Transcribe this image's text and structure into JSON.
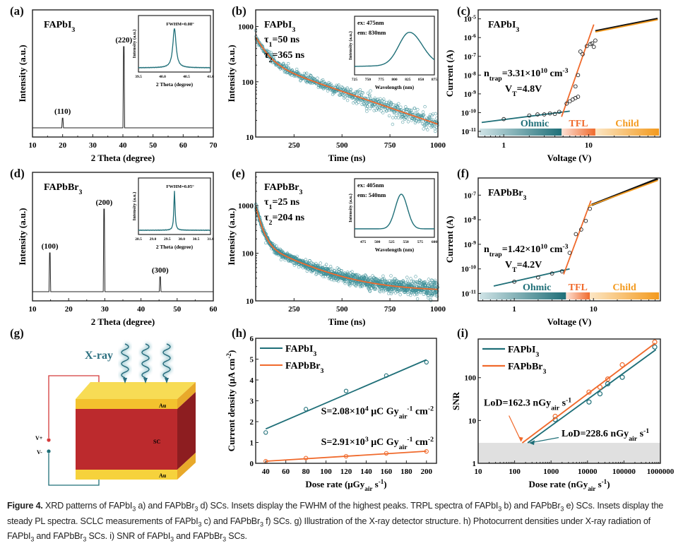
{
  "figure": {
    "number_label": "Figure 4.",
    "caption_segments": [
      {
        "t": "XRD patterns of FAPbI"
      },
      {
        "s": "3"
      },
      {
        "t": " a) and FAPbBr"
      },
      {
        "s": "3"
      },
      {
        "t": " d) SCs. Insets display the FWHM of the highest peaks. TRPL spectra of FAPbI"
      },
      {
        "s": "3"
      },
      {
        "t": " b) and FAPbBr"
      },
      {
        "s": "3"
      },
      {
        "t": " e) SCs. Insets display the steady PL spectra. SCLC measurements of FAPbI"
      },
      {
        "s": "3"
      },
      {
        "t": " c) and FAPbBr"
      },
      {
        "s": "3"
      },
      {
        "t": " f) SCs. g) Illustration of the X-ray detector structure. h) Photocurrent densities under X-ray radiation of FAPbI"
      },
      {
        "s": "3"
      },
      {
        "t": " and FAPbBr"
      },
      {
        "s": "3"
      },
      {
        "t": " SCs. i) SNR of FAPbI"
      },
      {
        "s": "3"
      },
      {
        "t": " and FAPbBr"
      },
      {
        "s": "3"
      },
      {
        "t": " SCs."
      }
    ]
  },
  "colors": {
    "teal": "#1f6f78",
    "orange": "#f06a2c",
    "amber": "#f39a1e",
    "black": "#1a1a1a",
    "au_gold": "#f5c93a",
    "sc_red": "#bf2a2e",
    "lod_gray": "#e0e0e0",
    "wire_red": "#d43a3a"
  },
  "panels": {
    "a": {
      "label": "(a)",
      "material": "FAPbI",
      "material_sub": "3"
    },
    "b": {
      "label": "(b)",
      "material": "FAPbI",
      "material_sub": "3",
      "tau1": "=50 ns",
      "tau2": "=365 ns"
    },
    "c": {
      "label": "(c)",
      "material": "FAPbI",
      "material_sub": "3",
      "ntrap": "=3.31×10",
      "ntrap_exp": "10",
      "ntrap_unit": " cm",
      "ntrap_unit_exp": "-3",
      "vt": "=4.8V",
      "regions": [
        "Ohmic",
        "TFL",
        "Child"
      ]
    },
    "d": {
      "label": "(d)",
      "material": "FAPbBr",
      "material_sub": "3"
    },
    "e": {
      "label": "(e)",
      "material": "FAPbBr",
      "material_sub": "3",
      "tau1": "=25 ns",
      "tau2": "=204 ns"
    },
    "f": {
      "label": "(f)",
      "material": "FAPbBr",
      "material_sub": "3",
      "ntrap": "=1.42×10",
      "ntrap_exp": "10",
      "ntrap_unit": " cm",
      "ntrap_unit_exp": "-3",
      "vt": "=4.2V",
      "regions": [
        "Ohmic",
        "TFL",
        "Child"
      ]
    },
    "g": {
      "label": "(g)",
      "xray": "X-ray",
      "au_top": "Au",
      "sc": "SC",
      "au_bottom": "Au",
      "vplus": "V+",
      "vminus": "V-"
    },
    "h": {
      "label": "(h)",
      "s1": "S=2.08×10",
      "s1_exp": "4",
      "s2": "S=2.91×10",
      "s2_exp": "3",
      "s_unit": " μC Gy",
      "s_unit_sub": "air",
      "s_unit_tail": " cm",
      "s_unit_tail_exp": "-2"
    },
    "i": {
      "label": "(i)",
      "lod1": "LoD=162.3 nGy",
      "lod2": "LoD=228.6 nGy",
      "lod_sub": "air",
      "lod_tail": " s"
    }
  },
  "chart_data": [
    {
      "id": "a",
      "type": "line",
      "title": "FAPbI3 XRD",
      "xlabel": "2 Theta (degree)",
      "ylabel": "Intensity (a.u.)",
      "xlim": [
        10,
        70
      ],
      "xticks": [
        10,
        20,
        30,
        40,
        50,
        60,
        70
      ],
      "peaks": [
        {
          "x": 20.0,
          "h": 0.12,
          "label": "(110)"
        },
        {
          "x": 40.3,
          "h": 1.0,
          "label": "(220)"
        }
      ],
      "inset": {
        "xlabel": "2 Theta (degree)",
        "ylabel": "Intensity (a.u.)",
        "xlim": [
          39.5,
          41.0
        ],
        "xticks": [
          "39.5",
          "40.0",
          "40.5",
          "41.0"
        ],
        "annotation": "FWHM=0.08°",
        "peak_center": 40.25,
        "fwhm": 0.08
      }
    },
    {
      "id": "b",
      "type": "scatter",
      "title": "FAPbI3 TRPL",
      "xlabel": "Time (ns)",
      "ylabel": "Intensity (a.u.)",
      "yscale": "log",
      "xlim": [
        50,
        1000
      ],
      "ylim": [
        10,
        2000
      ],
      "xticks": [
        250,
        500,
        750,
        1000
      ],
      "yticks": [
        10,
        100,
        1000
      ],
      "fit": {
        "a1": 420,
        "tau1": 50,
        "a2": 230,
        "tau2": 365,
        "offset": 0,
        "t0": 50
      },
      "inset": {
        "xlabel": "Wavelength (nm)",
        "ylabel": "Intensity (a.u.)",
        "xlim": [
          725,
          875
        ],
        "xticks": [
          725,
          750,
          775,
          800,
          825,
          850,
          875
        ],
        "lines": [
          "ex: 475nm",
          "em: 830nm"
        ],
        "peak": 828
      }
    },
    {
      "id": "c",
      "type": "scatter",
      "title": "FAPbI3 SCLC",
      "xlabel": "Voltage (V)",
      "ylabel": "Current (A)",
      "xscale": "log",
      "yscale": "log",
      "xlim": [
        0.5,
        70
      ],
      "ylim": [
        5e-12,
        3e-05
      ],
      "xticks": [
        1,
        10
      ],
      "yticks_exp": [
        -11,
        -10,
        -9,
        -8,
        -7,
        -6,
        -5
      ],
      "points": [
        [
          1,
          4.5e-11
        ],
        [
          2,
          7e-11
        ],
        [
          2.5,
          8e-11
        ],
        [
          3,
          8e-11
        ],
        [
          3.5,
          9e-11
        ],
        [
          4,
          8.5e-11
        ],
        [
          4.5,
          1.1e-10
        ],
        [
          5.5,
          3e-10
        ],
        [
          6,
          4e-10
        ],
        [
          6.5,
          5e-10
        ],
        [
          7,
          6e-10
        ],
        [
          7.5,
          7e-10
        ],
        [
          7,
          2.5e-09
        ],
        [
          7.5,
          1e-08
        ],
        [
          8,
          1.8e-07
        ],
        [
          8.5,
          1.3e-07
        ],
        [
          9.5,
          3.5e-07
        ],
        [
          10.5,
          4.5e-07
        ],
        [
          11,
          5e-07
        ],
        [
          11.5,
          3.2e-07
        ],
        [
          12,
          7e-07
        ]
      ],
      "ohmic_fit": [
        [
          0.55,
          3e-11
        ],
        [
          6,
          1.2e-10
        ]
      ],
      "tfl_fit": [
        [
          4.8,
          6e-11
        ],
        [
          11.5,
          5e-06
        ]
      ],
      "child_fit": [
        [
          12,
          2e-06
        ],
        [
          65,
          9e-06
        ]
      ],
      "child_data": [
        [
          12,
          2.2e-06
        ],
        [
          65,
          1e-05
        ]
      ],
      "regions": [
        {
          "name": "Ohmic",
          "to": 4.8
        },
        {
          "name": "TFL",
          "to": 12
        },
        {
          "name": "Child",
          "to": 70
        }
      ]
    },
    {
      "id": "d",
      "type": "line",
      "title": "FAPbBr3 XRD",
      "xlabel": "2 Theta (degree)",
      "ylabel": "Intensity (a.u.)",
      "xlim": [
        10,
        60
      ],
      "xticks": [
        10,
        20,
        30,
        40,
        50,
        60
      ],
      "peaks": [
        {
          "x": 14.8,
          "h": 0.47,
          "label": "(100)"
        },
        {
          "x": 29.8,
          "h": 1.0,
          "label": "(200)"
        },
        {
          "x": 45.3,
          "h": 0.18,
          "label": "(300)"
        }
      ],
      "inset": {
        "xlabel": "2 Theta (degree)",
        "ylabel": "Intensity (a.u.)",
        "xlim": [
          28.5,
          31.0
        ],
        "xticks": [
          "28.5",
          "29.0",
          "29.5",
          "30.0",
          "30.5",
          "31.0"
        ],
        "annotation": "FWHM=0.05°",
        "peak_center": 29.75,
        "fwhm": 0.05
      }
    },
    {
      "id": "e",
      "type": "scatter",
      "title": "FAPbBr3 TRPL",
      "xlabel": "Time (ns)",
      "ylabel": "Intensity (a.u.)",
      "yscale": "log",
      "xlim": [
        50,
        1000
      ],
      "ylim": [
        10,
        5000
      ],
      "xticks": [
        250,
        500,
        750,
        1000
      ],
      "yticks": [
        10,
        100,
        1000
      ],
      "fit": {
        "a1": 800,
        "tau1": 25,
        "a2": 150,
        "tau2": 204,
        "offset": 16,
        "t0": 50
      },
      "inset": {
        "xlabel": "Wavelength (nm)",
        "ylabel": "Intensity (a.u.)",
        "xlim": [
          460,
          600
        ],
        "xticks": [
          475,
          500,
          525,
          550,
          575,
          600
        ],
        "lines": [
          "ex: 405nm",
          "em: 540nm"
        ],
        "peak": 542
      }
    },
    {
      "id": "f",
      "type": "scatter",
      "title": "FAPbBr3 SCLC",
      "xlabel": "Voltage (V)",
      "ylabel": "Current (A)",
      "xscale": "log",
      "yscale": "log",
      "xlim": [
        0.35,
        70
      ],
      "ylim": [
        5e-12,
        5e-07
      ],
      "xticks": [
        1,
        10
      ],
      "yticks_exp": [
        -11,
        -10,
        -9,
        -8,
        -7
      ],
      "points": [
        [
          1,
          3e-11
        ],
        [
          2,
          4.5e-11
        ],
        [
          3,
          6.5e-11
        ],
        [
          4,
          8e-11
        ],
        [
          5,
          4.5e-10
        ],
        [
          6,
          2.6e-09
        ],
        [
          7,
          4e-09
        ],
        [
          8,
          9e-09
        ],
        [
          9,
          2.8e-08
        ]
      ],
      "ohmic_fit": [
        [
          0.55,
          2e-11
        ],
        [
          5,
          1e-10
        ]
      ],
      "tfl_fit": [
        [
          4.2,
          6e-11
        ],
        [
          9.3,
          6e-08
        ]
      ],
      "child_fit": [
        [
          8.5,
          3.5e-08
        ],
        [
          65,
          4e-07
        ]
      ],
      "child_data": [
        [
          9.5,
          4e-08
        ],
        [
          65,
          4.6e-07
        ]
      ],
      "regions": [
        {
          "name": "Ohmic",
          "to": 4.5
        },
        {
          "name": "TFL",
          "to": 9
        },
        {
          "name": "Child",
          "to": 70
        }
      ]
    },
    {
      "id": "h",
      "type": "line",
      "xlabel": "Dose rate (μGyair s-1)",
      "ylabel": "Current density (μA cm-2)",
      "xlim": [
        30,
        210
      ],
      "ylim": [
        0,
        6
      ],
      "xticks": [
        40,
        60,
        80,
        100,
        120,
        140,
        160,
        180,
        200
      ],
      "yticks": [
        0,
        1,
        2,
        3,
        4,
        5,
        6
      ],
      "legend_position": "top-left",
      "series": [
        {
          "name": "FAPbI3",
          "sub_index": 5,
          "color": "teal",
          "x": [
            40,
            80,
            120,
            160,
            200
          ],
          "values": [
            1.48,
            2.6,
            3.47,
            4.21,
            4.85
          ],
          "fit": [
            [
              40,
              1.65
            ],
            [
              200,
              4.97
            ]
          ]
        },
        {
          "name": "FAPbBr3",
          "sub_index": 6,
          "color": "orange",
          "x": [
            40,
            80,
            120,
            160,
            200
          ],
          "values": [
            0.1,
            0.25,
            0.34,
            0.48,
            0.57
          ],
          "fit": [
            [
              40,
              0.1
            ],
            [
              200,
              0.58
            ]
          ]
        }
      ]
    },
    {
      "id": "i",
      "type": "line",
      "xlabel": "Dose rate (nGyair s-1)",
      "ylabel": "SNR",
      "xscale": "log",
      "yscale": "log",
      "xlim": [
        10,
        1000000
      ],
      "ylim": [
        1,
        800
      ],
      "xticks": [
        10,
        100,
        1000,
        10000,
        100000,
        1000000
      ],
      "yticks": [
        1,
        10,
        100
      ],
      "threshold": 3,
      "legend_position": "top-left",
      "series": [
        {
          "name": "FAPbI3",
          "color": "teal",
          "x": [
            1300,
            11000,
            22000,
            36000,
            90000,
            700000
          ],
          "values": [
            10.5,
            27,
            42,
            72,
            102,
            520
          ],
          "fit": [
            [
              228.6,
              3
            ],
            [
              750000,
              450
            ]
          ]
        },
        {
          "name": "FAPbBr3",
          "color": "orange",
          "x": [
            1300,
            11000,
            22000,
            36000,
            90000,
            700000
          ],
          "values": [
            12.5,
            46,
            60,
            93,
            200,
            680
          ],
          "fit": [
            [
              162.3,
              3
            ],
            [
              720000,
              640
            ]
          ]
        }
      ]
    }
  ]
}
